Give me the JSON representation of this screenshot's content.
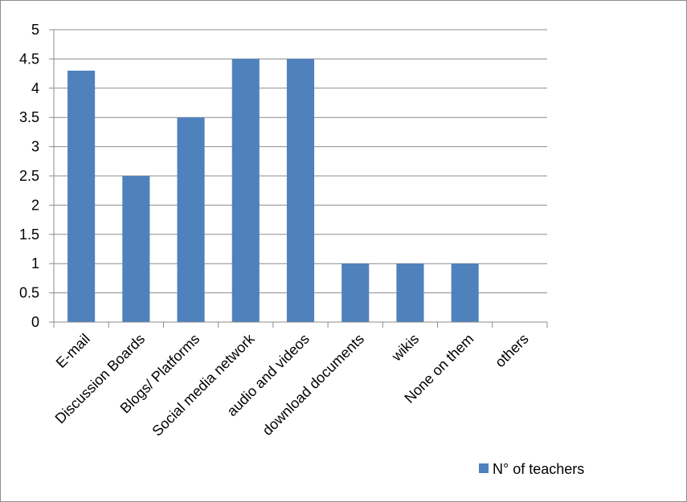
{
  "chart_data": {
    "type": "bar",
    "categories": [
      "E-mail",
      "Discussion Boards",
      "Blogs/ Platforms",
      "Social media network",
      "audio and videos",
      "download documents",
      "wikis",
      "None on them",
      "others"
    ],
    "series": [
      {
        "name": "N° of teachers",
        "values": [
          4.3,
          2.5,
          3.5,
          4.5,
          4.5,
          1,
          1,
          1,
          0
        ]
      }
    ],
    "ylim": [
      0,
      5
    ],
    "yticks": [
      "0",
      "0.5",
      "1",
      "1.5",
      "2",
      "2.5",
      "3",
      "3.5",
      "4",
      "4.5",
      "5"
    ],
    "grid": true,
    "legend_position": "bottom-right",
    "colors": {
      "bar": "#4f81bd",
      "grid": "#8c8c8c",
      "axis": "#8c8c8c"
    }
  }
}
